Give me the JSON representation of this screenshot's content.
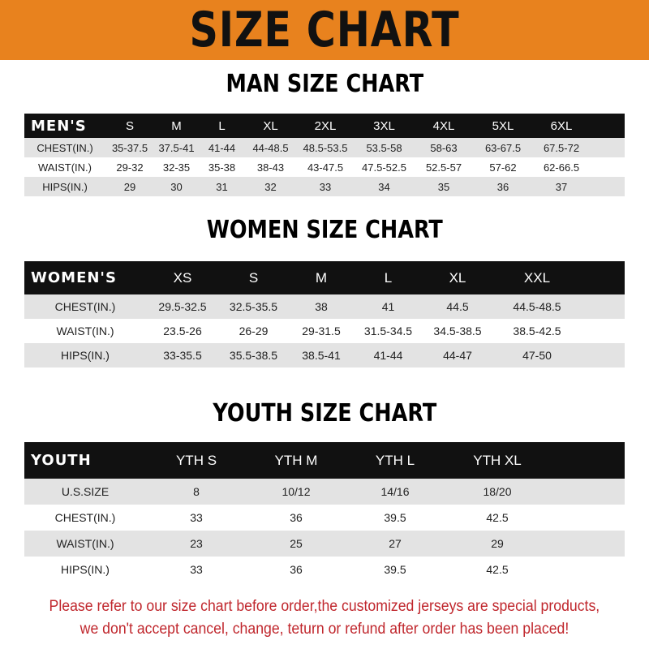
{
  "banner_title": "SIZE CHART",
  "colors": {
    "banner": "#e8821e",
    "header_row": "#111111",
    "stripe": "#e3e3e3",
    "note": "#c0272d"
  },
  "men": {
    "title": "MAN SIZE CHART",
    "corner": "MEN'S",
    "sizes": [
      "S",
      "M",
      "L",
      "XL",
      "2XL",
      "3XL",
      "4XL",
      "5XL",
      "6XL"
    ],
    "rows": [
      {
        "label": "CHEST(IN.)",
        "values": [
          "35-37.5",
          "37.5-41",
          "41-44",
          "44-48.5",
          "48.5-53.5",
          "53.5-58",
          "58-63",
          "63-67.5",
          "67.5-72"
        ]
      },
      {
        "label": "WAIST(IN.)",
        "values": [
          "29-32",
          "32-35",
          "35-38",
          "38-43",
          "43-47.5",
          "47.5-52.5",
          "52.5-57",
          "57-62",
          "62-66.5"
        ]
      },
      {
        "label": "HIPS(IN.)",
        "values": [
          "29",
          "30",
          "31",
          "32",
          "33",
          "34",
          "35",
          "36",
          "37"
        ]
      }
    ]
  },
  "women": {
    "title": "WOMEN SIZE CHART",
    "corner": "WOMEN'S",
    "sizes": [
      "XS",
      "S",
      "M",
      "L",
      "XL",
      "XXL"
    ],
    "rows": [
      {
        "label": "CHEST(IN.)",
        "values": [
          "29.5-32.5",
          "32.5-35.5",
          "38",
          "41",
          "44.5",
          "44.5-48.5"
        ]
      },
      {
        "label": "WAIST(IN.)",
        "values": [
          "23.5-26",
          "26-29",
          "29-31.5",
          "31.5-34.5",
          "34.5-38.5",
          "38.5-42.5"
        ]
      },
      {
        "label": "HIPS(IN.)",
        "values": [
          "33-35.5",
          "35.5-38.5",
          "38.5-41",
          "41-44",
          "44-47",
          "47-50"
        ]
      }
    ]
  },
  "youth": {
    "title": "YOUTH SIZE CHART",
    "corner": "YOUTH",
    "sizes": [
      "YTH S",
      "YTH M",
      "YTH L",
      "YTH XL"
    ],
    "rows": [
      {
        "label": "U.S.SIZE",
        "values": [
          "8",
          "10/12",
          "14/16",
          "18/20"
        ]
      },
      {
        "label": "CHEST(IN.)",
        "values": [
          "33",
          "36",
          "39.5",
          "42.5"
        ]
      },
      {
        "label": "WAIST(IN.)",
        "values": [
          "23",
          "25",
          "27",
          "29"
        ]
      },
      {
        "label": "HIPS(IN.)",
        "values": [
          "33",
          "36",
          "39.5",
          "42.5"
        ]
      }
    ]
  },
  "note": {
    "line1": "Please refer to our size chart before order,the customized jerseys are special products,",
    "line2": "we don't accept cancel, change, teturn or refund after order has been placed!"
  }
}
